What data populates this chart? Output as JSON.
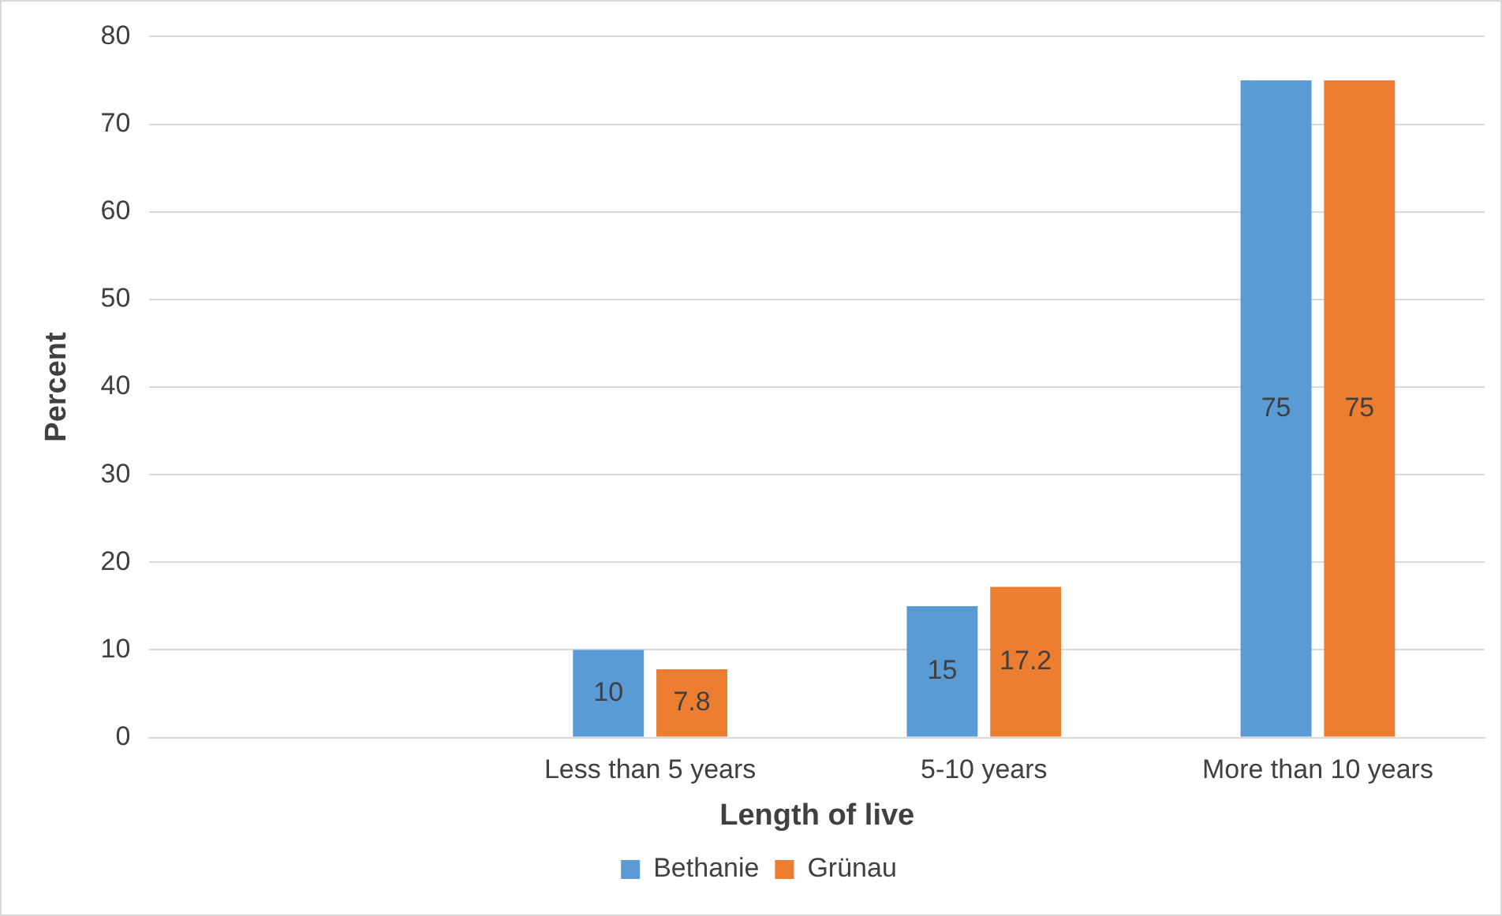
{
  "chart_data": {
    "type": "bar",
    "xlabel": "Length of live",
    "ylabel": "Percent",
    "categories": [
      null,
      "Less than 5 years",
      "5-10 years",
      "More than 10 years"
    ],
    "series": [
      {
        "name": "Bethanie",
        "color": "#5b9bd5",
        "values": [
          null,
          10,
          15,
          75
        ]
      },
      {
        "name": "Grünau",
        "color": "#ed7d31",
        "values": [
          null,
          7.8,
          17.2,
          75
        ]
      }
    ],
    "ylim": [
      0,
      80
    ],
    "yticks": [
      0,
      10,
      20,
      30,
      40,
      50,
      60,
      70,
      80
    ],
    "grid": "y",
    "legend": "bottom",
    "data_labels": true
  }
}
